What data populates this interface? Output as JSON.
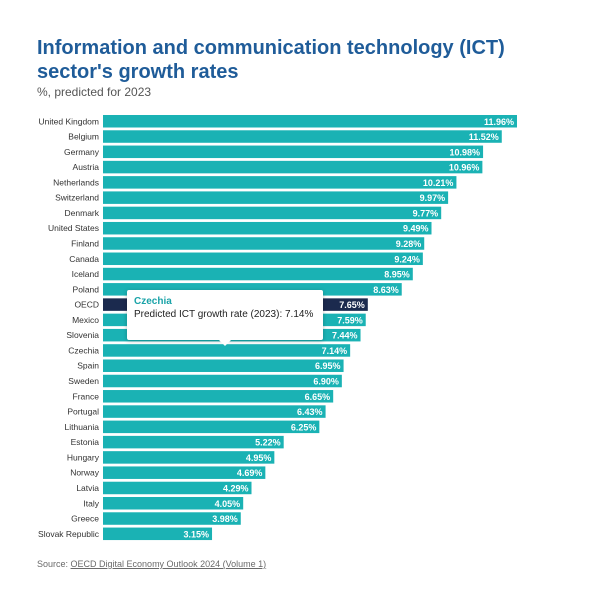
{
  "chart": {
    "title": "Information and communication technology (ICT) sector's growth rates",
    "subtitle": "%, predicted for 2023"
  },
  "source": {
    "prefix": "Source: ",
    "link": "OECD Digital Economy Outlook 2024 (Volume 1)"
  },
  "tooltip": {
    "country": "Czechia",
    "text": "Predicted ICT growth rate (2023): 7.14%"
  },
  "colors": {
    "bar": "#1ab2b4",
    "highlight": "#1b2a4e",
    "title": "#1f5c99",
    "tooltip_title": "#1aa3a8"
  },
  "chart_data": {
    "type": "bar",
    "orientation": "horizontal",
    "title": "Information and communication technology (ICT) sector's growth rates",
    "subtitle": "%, predicted for 2023",
    "categories": [
      "United Kingdom",
      "Belgium",
      "Germany",
      "Austria",
      "Netherlands",
      "Switzerland",
      "Denmark",
      "United States",
      "Finland",
      "Canada",
      "Iceland",
      "Poland",
      "OECD",
      "Mexico",
      "Slovenia",
      "Czechia",
      "Spain",
      "Sweden",
      "France",
      "Portugal",
      "Lithuania",
      "Estonia",
      "Hungary",
      "Norway",
      "Latvia",
      "Italy",
      "Greece",
      "Slovak Republic"
    ],
    "values": [
      11.96,
      11.52,
      10.98,
      10.96,
      10.21,
      9.97,
      9.77,
      9.49,
      9.28,
      9.24,
      8.95,
      8.63,
      7.65,
      7.59,
      7.44,
      7.14,
      6.95,
      6.9,
      6.65,
      6.43,
      6.25,
      5.22,
      4.95,
      4.69,
      4.29,
      4.05,
      3.98,
      3.15
    ],
    "labels": [
      "11.96%",
      "11.52%",
      "10.98%",
      "10.96%",
      "10.21%",
      "9.97%",
      "9.77%",
      "9.49%",
      "9.28%",
      "9.24%",
      "8.95%",
      "8.63%",
      "7.65%",
      "7.59%",
      "7.44%",
      "7.14%",
      "6.95%",
      "6.90%",
      "6.65%",
      "6.43%",
      "6.25%",
      "5.22%",
      "4.95%",
      "4.69%",
      "4.29%",
      "4.05%",
      "3.98%",
      "3.15%"
    ],
    "highlight": "OECD",
    "xlim": [
      0,
      11.96
    ],
    "grid": false,
    "legend": "none"
  }
}
